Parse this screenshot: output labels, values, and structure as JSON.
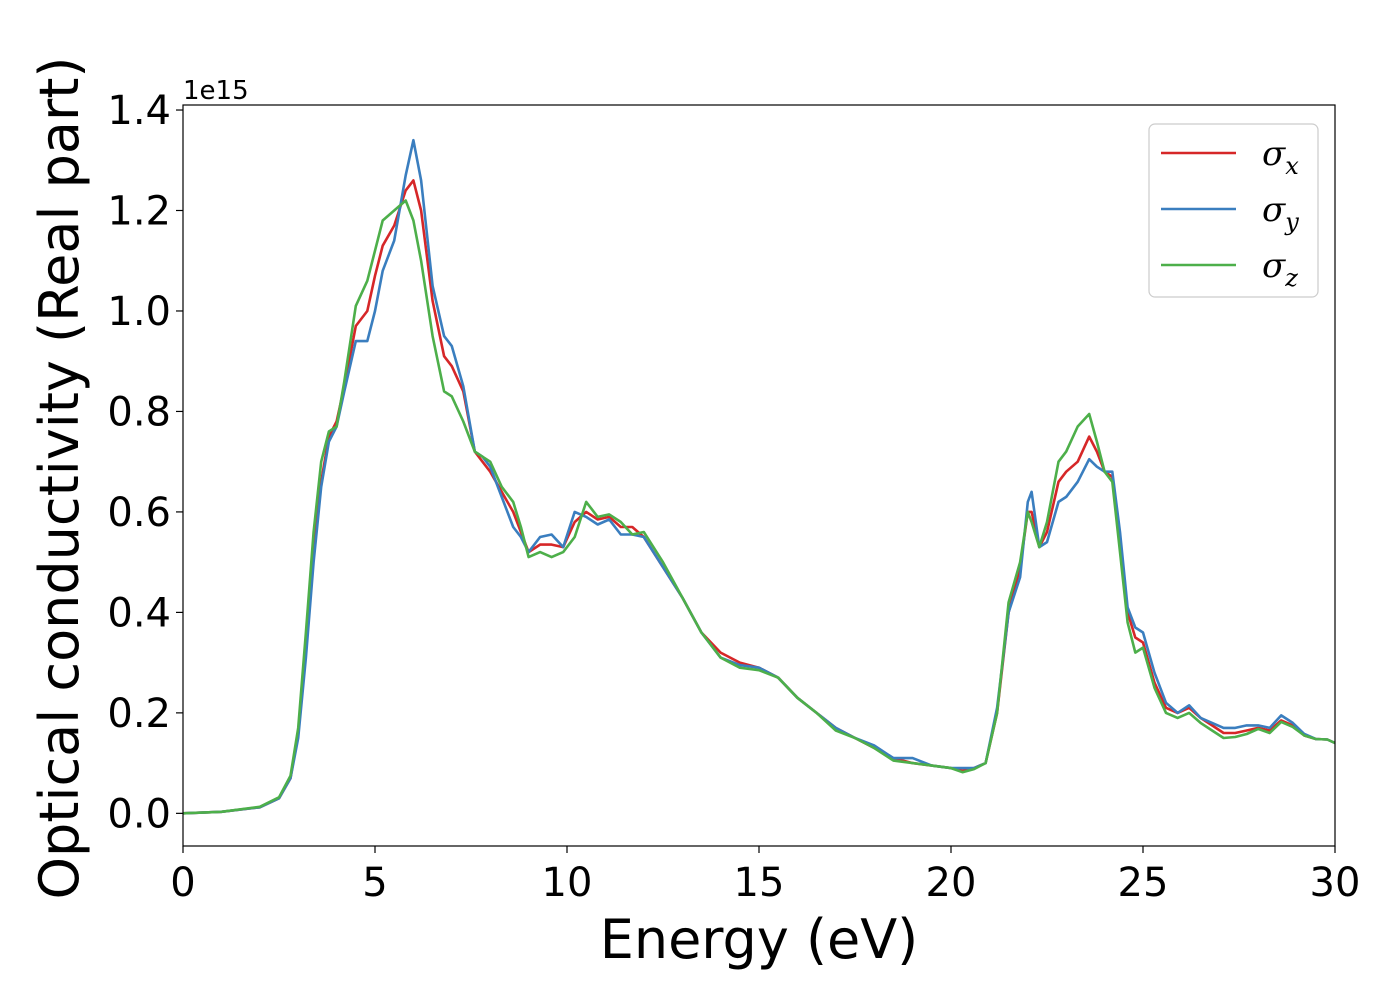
{
  "chart_data": {
    "type": "line",
    "title": "",
    "xlabel": "Energy (eV)",
    "ylabel": "Optical conductivity (Real part)",
    "y_offset_label": "1e15",
    "xlim": [
      0,
      30
    ],
    "ylim": [
      -0.065,
      1.41
    ],
    "x_ticks": [
      0,
      5,
      10,
      15,
      20,
      25,
      30
    ],
    "x_tick_labels": [
      "0",
      "5",
      "10",
      "15",
      "20",
      "25",
      "30"
    ],
    "y_ticks": [
      0.0,
      0.2,
      0.4,
      0.6,
      0.8,
      1.0,
      1.2,
      1.4
    ],
    "y_tick_labels": [
      "0.0",
      "0.2",
      "0.4",
      "0.6",
      "0.8",
      "1.0",
      "1.2",
      "1.4"
    ],
    "grid": false,
    "legend_position": "top-right",
    "series": [
      {
        "name": "σx",
        "legend_main": "σ",
        "legend_sub": "x",
        "color": "#d62728",
        "x": [
          0,
          1,
          2,
          2.5,
          2.8,
          3.0,
          3.2,
          3.4,
          3.6,
          3.8,
          4.0,
          4.2,
          4.5,
          4.8,
          5.0,
          5.2,
          5.5,
          5.8,
          6.0,
          6.2,
          6.5,
          6.8,
          7.0,
          7.3,
          7.6,
          7.8,
          8.0,
          8.3,
          8.6,
          8.8,
          9.0,
          9.3,
          9.6,
          9.9,
          10.2,
          10.5,
          10.8,
          11.1,
          11.4,
          11.7,
          12.0,
          12.5,
          13.0,
          13.5,
          14.0,
          14.5,
          15.0,
          15.5,
          16.0,
          16.5,
          17.0,
          17.5,
          18.0,
          18.5,
          19.0,
          19.5,
          20.0,
          20.3,
          20.6,
          20.9,
          21.2,
          21.5,
          21.8,
          22.0,
          22.1,
          22.3,
          22.5,
          22.8,
          23.0,
          23.3,
          23.6,
          23.8,
          24.0,
          24.2,
          24.4,
          24.6,
          24.8,
          25.0,
          25.3,
          25.6,
          25.9,
          26.2,
          26.5,
          26.8,
          27.1,
          27.4,
          27.7,
          28.0,
          28.3,
          28.6,
          28.9,
          29.2,
          29.5,
          29.8,
          30.0
        ],
        "y": [
          0.0,
          0.003,
          0.012,
          0.03,
          0.07,
          0.16,
          0.33,
          0.52,
          0.66,
          0.75,
          0.78,
          0.85,
          0.97,
          1.0,
          1.07,
          1.13,
          1.17,
          1.24,
          1.26,
          1.2,
          1.02,
          0.91,
          0.89,
          0.84,
          0.72,
          0.7,
          0.68,
          0.64,
          0.6,
          0.56,
          0.52,
          0.535,
          0.535,
          0.53,
          0.58,
          0.6,
          0.585,
          0.59,
          0.57,
          0.57,
          0.55,
          0.49,
          0.43,
          0.36,
          0.32,
          0.3,
          0.29,
          0.27,
          0.23,
          0.2,
          0.17,
          0.15,
          0.13,
          0.11,
          0.1,
          0.095,
          0.09,
          0.085,
          0.09,
          0.1,
          0.2,
          0.4,
          0.49,
          0.6,
          0.6,
          0.53,
          0.56,
          0.66,
          0.68,
          0.7,
          0.75,
          0.72,
          0.68,
          0.67,
          0.55,
          0.4,
          0.35,
          0.34,
          0.26,
          0.21,
          0.2,
          0.21,
          0.19,
          0.175,
          0.16,
          0.16,
          0.165,
          0.17,
          0.165,
          0.185,
          0.175,
          0.155,
          0.148,
          0.147,
          0.14
        ]
      },
      {
        "name": "σy",
        "legend_main": "σ",
        "legend_sub": "y",
        "color": "#3a7ebf",
        "x": [
          0,
          1,
          2,
          2.5,
          2.8,
          3.0,
          3.2,
          3.4,
          3.6,
          3.8,
          4.0,
          4.2,
          4.5,
          4.8,
          5.0,
          5.2,
          5.5,
          5.8,
          6.0,
          6.2,
          6.5,
          6.8,
          7.0,
          7.3,
          7.6,
          7.8,
          8.0,
          8.3,
          8.6,
          8.8,
          9.0,
          9.3,
          9.6,
          9.9,
          10.2,
          10.5,
          10.8,
          11.1,
          11.4,
          11.7,
          12.0,
          12.5,
          13.0,
          13.5,
          14.0,
          14.5,
          15.0,
          15.5,
          16.0,
          16.5,
          17.0,
          17.5,
          18.0,
          18.5,
          19.0,
          19.5,
          20.0,
          20.3,
          20.6,
          20.9,
          21.2,
          21.5,
          21.8,
          22.0,
          22.1,
          22.3,
          22.5,
          22.8,
          23.0,
          23.3,
          23.6,
          23.8,
          24.0,
          24.2,
          24.4,
          24.6,
          24.8,
          25.0,
          25.3,
          25.6,
          25.9,
          26.2,
          26.5,
          26.8,
          27.1,
          27.4,
          27.7,
          28.0,
          28.3,
          28.6,
          28.9,
          29.2,
          29.5,
          29.8,
          30.0
        ],
        "y": [
          0.0,
          0.003,
          0.012,
          0.03,
          0.07,
          0.15,
          0.31,
          0.5,
          0.65,
          0.74,
          0.77,
          0.84,
          0.94,
          0.94,
          1.0,
          1.08,
          1.14,
          1.27,
          1.34,
          1.26,
          1.05,
          0.95,
          0.93,
          0.85,
          0.72,
          0.71,
          0.69,
          0.63,
          0.57,
          0.55,
          0.52,
          0.55,
          0.555,
          0.53,
          0.6,
          0.59,
          0.575,
          0.585,
          0.555,
          0.555,
          0.55,
          0.49,
          0.43,
          0.36,
          0.31,
          0.295,
          0.29,
          0.27,
          0.23,
          0.2,
          0.17,
          0.15,
          0.135,
          0.11,
          0.11,
          0.095,
          0.09,
          0.09,
          0.09,
          0.1,
          0.21,
          0.4,
          0.47,
          0.62,
          0.64,
          0.53,
          0.54,
          0.62,
          0.63,
          0.66,
          0.705,
          0.69,
          0.68,
          0.68,
          0.56,
          0.41,
          0.37,
          0.36,
          0.28,
          0.22,
          0.2,
          0.215,
          0.19,
          0.18,
          0.17,
          0.17,
          0.175,
          0.175,
          0.17,
          0.195,
          0.18,
          0.158,
          0.148,
          0.147,
          0.14
        ]
      },
      {
        "name": "σz",
        "legend_main": "σ",
        "legend_sub": "z",
        "color": "#4daf4a",
        "x": [
          0,
          1,
          2,
          2.5,
          2.8,
          3.0,
          3.2,
          3.4,
          3.6,
          3.8,
          4.0,
          4.2,
          4.5,
          4.8,
          5.0,
          5.2,
          5.5,
          5.8,
          6.0,
          6.2,
          6.5,
          6.8,
          7.0,
          7.3,
          7.6,
          7.8,
          8.0,
          8.3,
          8.6,
          8.8,
          9.0,
          9.3,
          9.6,
          9.9,
          10.2,
          10.5,
          10.8,
          11.1,
          11.4,
          11.7,
          12.0,
          12.5,
          13.0,
          13.5,
          14.0,
          14.5,
          15.0,
          15.5,
          16.0,
          16.5,
          17.0,
          17.5,
          18.0,
          18.5,
          19.0,
          19.5,
          20.0,
          20.3,
          20.6,
          20.9,
          21.2,
          21.5,
          21.8,
          22.0,
          22.1,
          22.3,
          22.5,
          22.8,
          23.0,
          23.3,
          23.6,
          23.8,
          24.0,
          24.2,
          24.4,
          24.6,
          24.8,
          25.0,
          25.3,
          25.6,
          25.9,
          26.2,
          26.5,
          26.8,
          27.1,
          27.4,
          27.7,
          28.0,
          28.3,
          28.6,
          28.9,
          29.2,
          29.5,
          29.8,
          30.0
        ],
        "y": [
          0.0,
          0.003,
          0.013,
          0.032,
          0.075,
          0.17,
          0.36,
          0.56,
          0.7,
          0.76,
          0.77,
          0.86,
          1.01,
          1.06,
          1.12,
          1.18,
          1.2,
          1.22,
          1.18,
          1.1,
          0.95,
          0.84,
          0.83,
          0.78,
          0.72,
          0.71,
          0.7,
          0.65,
          0.62,
          0.57,
          0.51,
          0.52,
          0.51,
          0.52,
          0.55,
          0.62,
          0.59,
          0.595,
          0.58,
          0.555,
          0.56,
          0.5,
          0.43,
          0.36,
          0.31,
          0.29,
          0.285,
          0.27,
          0.23,
          0.2,
          0.165,
          0.15,
          0.13,
          0.105,
          0.1,
          0.095,
          0.09,
          0.082,
          0.088,
          0.1,
          0.2,
          0.42,
          0.5,
          0.6,
          0.58,
          0.53,
          0.58,
          0.7,
          0.72,
          0.77,
          0.795,
          0.74,
          0.68,
          0.66,
          0.52,
          0.38,
          0.32,
          0.33,
          0.25,
          0.2,
          0.19,
          0.2,
          0.18,
          0.165,
          0.15,
          0.152,
          0.158,
          0.168,
          0.16,
          0.182,
          0.172,
          0.155,
          0.148,
          0.147,
          0.14
        ]
      }
    ]
  }
}
